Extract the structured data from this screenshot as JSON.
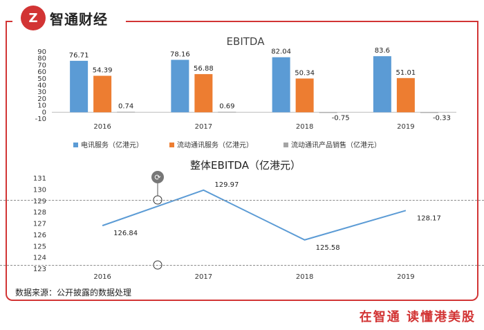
{
  "brand": {
    "logo_glyph": "Z",
    "name": "智通财经",
    "slogan": "在智通  读懂港美股",
    "accent": "#d23434"
  },
  "source_note": "数据来源：公开披露的数据处理",
  "chart_data": [
    {
      "type": "bar",
      "title": "EBITDA",
      "categories": [
        "2016",
        "2017",
        "2018",
        "2019"
      ],
      "ylim": [
        -10,
        90
      ],
      "yticks": [
        -10,
        0,
        10,
        20,
        30,
        40,
        50,
        60,
        70,
        80,
        90
      ],
      "series": [
        {
          "name": "电讯服务（亿港元）",
          "color": "#5b9bd5",
          "values": [
            76.71,
            78.16,
            82.04,
            83.6
          ]
        },
        {
          "name": "流动通讯服务（亿港元）",
          "color": "#ed7d31",
          "values": [
            54.39,
            56.88,
            50.34,
            51.01
          ]
        },
        {
          "name": "流动通讯产品销售（亿港元）",
          "color": "#a5a5a5",
          "values": [
            0.74,
            0.69,
            -0.75,
            -0.33
          ]
        }
      ],
      "legend": "bottom",
      "grid": false
    },
    {
      "type": "line",
      "title": "整体EBITDA（亿港元）",
      "x": [
        "2016",
        "2017",
        "2018",
        "2019"
      ],
      "ylim": [
        123,
        131
      ],
      "yticks": [
        123,
        124,
        125,
        126,
        127,
        128,
        129,
        130,
        131
      ],
      "series": [
        {
          "color": "#5b9bd5",
          "values": [
            126.84,
            129.97,
            125.58,
            128.17
          ]
        }
      ],
      "grid": false
    }
  ]
}
